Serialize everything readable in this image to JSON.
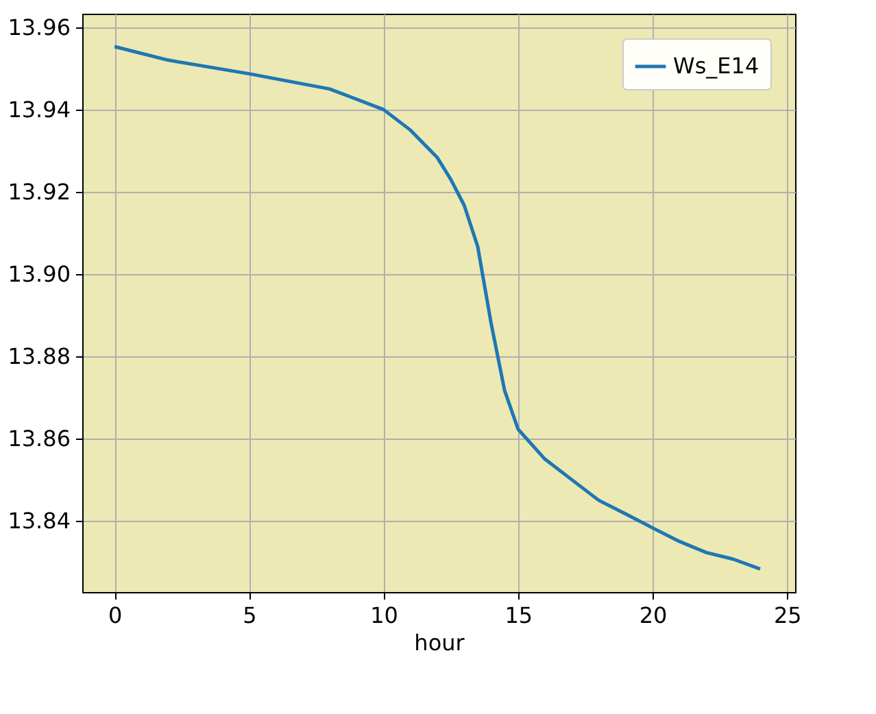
{
  "chart_data": {
    "type": "line",
    "xlabel": "hour",
    "x": [
      0,
      2,
      5,
      8,
      10,
      11,
      12,
      12.5,
      13,
      13.5,
      14,
      14.5,
      15,
      16,
      17,
      18,
      19,
      20,
      21,
      22,
      23,
      24
    ],
    "series": [
      {
        "name": "Ws_E14",
        "color": "#1f77b4",
        "values": [
          13.9553,
          13.952,
          13.9487,
          13.945,
          13.94,
          13.935,
          13.9283,
          13.923,
          13.9167,
          13.9067,
          13.888,
          13.8717,
          13.8623,
          13.855,
          13.85,
          13.845,
          13.8417,
          13.8383,
          13.835,
          13.8323,
          13.8307,
          13.8283
        ]
      }
    ],
    "xlim": [
      -1.2,
      25.3
    ],
    "xticks": [
      0,
      5,
      10,
      15,
      20,
      25
    ],
    "ylim": [
      13.8227,
      13.9633
    ],
    "yticks": [
      13.84,
      13.86,
      13.88,
      {
        "value": 13.9,
        "label": "13.90"
      },
      13.92,
      13.94,
      13.96
    ],
    "grid": true,
    "legend": "top right",
    "marker": "none",
    "line_style": "solid"
  }
}
